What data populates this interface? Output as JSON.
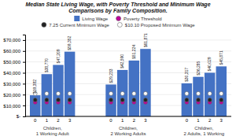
{
  "chart_data": {
    "type": "bar",
    "title": "Median State Living Wage, with Poverty Threshold and Minimum Wage\nComparisons by Family Composition.",
    "groups": [
      {
        "label": [
          "Children,",
          "1 Working Adult"
        ],
        "categories": [
          0,
          1,
          2,
          3
        ]
      },
      {
        "label": [
          "Children,",
          "2 Working Adults"
        ],
        "categories": [
          0,
          1,
          2,
          3
        ]
      },
      {
        "label": [
          "Children,",
          "2 Adults, 1 Working"
        ],
        "categories": [
          0,
          1,
          2,
          3
        ]
      }
    ],
    "series": [
      {
        "name": "Living Wage",
        "type": "bar",
        "color": "#4472C4",
        "data_labels": true,
        "values": [
          19382,
          38770,
          47209,
          59352,
          29233,
          42590,
          51224,
          61871,
          30317,
          36285,
          40029,
          45871
        ],
        "value_labels": [
          "$19,382",
          "$38,770",
          "$47,209",
          "$59,352",
          "$29,233",
          "$42,590",
          "$51,224",
          "$61,871",
          "$30,317",
          "$36,285",
          "$40,029",
          "$45,871"
        ]
      },
      {
        "name": "Poverty Threshold",
        "type": "scatter",
        "marker": "circle",
        "color": "#C0009B",
        "values": [
          13000,
          13000,
          13000,
          13000,
          13000,
          13000,
          13000,
          13000,
          13000,
          13000,
          13000,
          13000
        ]
      },
      {
        "name": "7.25 Current Minimum Wage",
        "type": "scatter",
        "marker": "circle",
        "color": "#222222",
        "values": [
          15080,
          15080,
          15080,
          15080,
          15080,
          15080,
          15080,
          15080,
          15080,
          15080,
          15080,
          15080
        ]
      },
      {
        "name": "$10.10 Proposed Minimum Wage",
        "type": "scatter",
        "marker": "circle",
        "color": "#FFFFFF",
        "values": [
          20987,
          20987,
          20987,
          20987,
          20987,
          20987,
          20987,
          20987,
          20987,
          20987,
          20987,
          20987
        ]
      }
    ],
    "ylim": [
      0,
      75000
    ],
    "yticks": [
      {
        "value": 0,
        "label": "$-"
      },
      {
        "value": 10000,
        "label": "$10,000"
      },
      {
        "value": 20000,
        "label": "$20,000"
      },
      {
        "value": 30000,
        "label": "$30,000"
      },
      {
        "value": 40000,
        "label": "$40,000"
      },
      {
        "value": 50000,
        "label": "$50,000"
      },
      {
        "value": 60000,
        "label": "$60,000"
      },
      {
        "value": 70000,
        "label": "$70,000"
      }
    ],
    "grid": true,
    "legend": "top"
  }
}
